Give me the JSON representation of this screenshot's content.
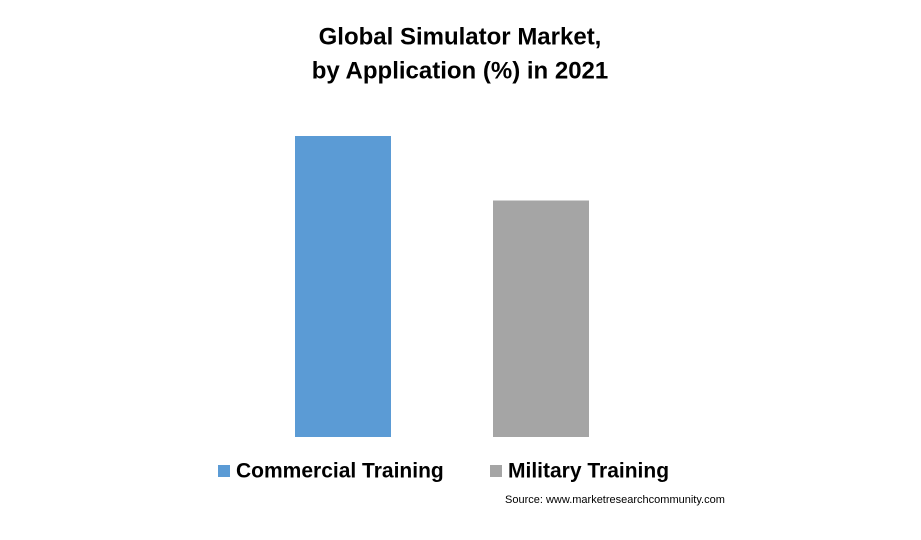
{
  "chart_data": {
    "type": "bar",
    "title": [
      "Global Simulator Market,",
      "by Application (%) in 2021"
    ],
    "series": [
      {
        "name": "Commercial Training",
        "color": "#5b9bd5",
        "values": [
          56
        ]
      },
      {
        "name": "Military Training",
        "color": "#a5a5a5",
        "values": [
          44
        ]
      }
    ],
    "source": "Source: www.marketresearchcommunity.com"
  }
}
